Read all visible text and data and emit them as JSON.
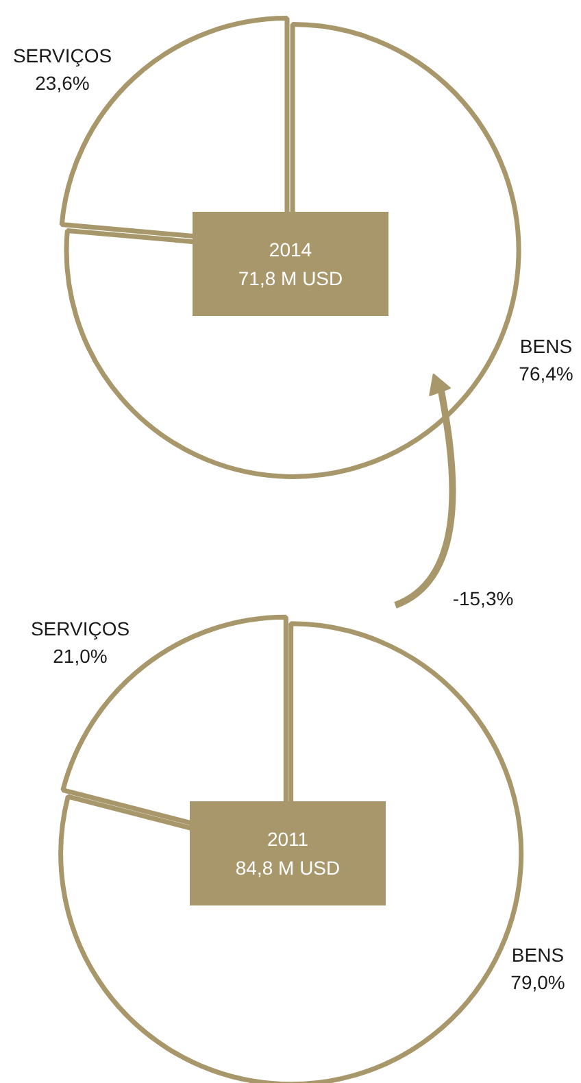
{
  "chart_data": [
    {
      "type": "pie",
      "categories": [
        "BENS",
        "SERVIÇOS"
      ],
      "values": [
        76.4,
        23.6
      ],
      "colors": [
        "#ffffff",
        "#ffffff"
      ],
      "value_labels": [
        "76,4%",
        "23,6%"
      ],
      "annotations": [
        "2014",
        "71,8 M USD",
        "-15,3%"
      ]
    },
    {
      "type": "pie",
      "categories": [
        "BENS",
        "SERVIÇOS"
      ],
      "values": [
        79.0,
        21.0
      ],
      "colors": [
        "#ffffff",
        "#ffffff"
      ],
      "value_labels": [
        "79,0%",
        "21,0%"
      ],
      "annotations": [
        "2011",
        "84,8 M USD"
      ]
    }
  ]
}
